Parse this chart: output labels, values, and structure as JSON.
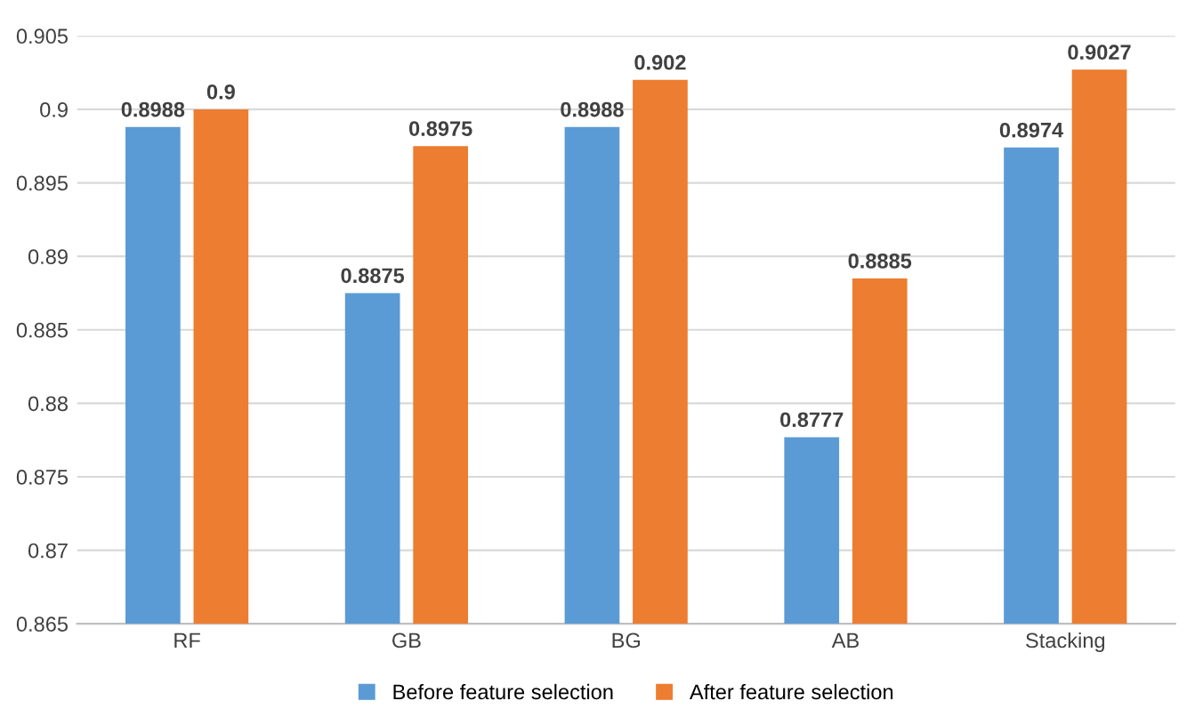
{
  "chart_data": {
    "type": "bar",
    "categories": [
      "RF",
      "GB",
      "BG",
      "AB",
      "Stacking"
    ],
    "series": [
      {
        "name": "Before feature selection",
        "color": "#5b9bd5",
        "values": [
          0.8988,
          0.8875,
          0.8988,
          0.8777,
          0.8974
        ]
      },
      {
        "name": "After feature selection",
        "color": "#ed7d31",
        "values": [
          0.9,
          0.8975,
          0.902,
          0.8885,
          0.9027
        ]
      }
    ],
    "ylim": [
      0.865,
      0.905
    ],
    "yticks": [
      0.865,
      0.87,
      0.875,
      0.88,
      0.885,
      0.89,
      0.895,
      0.9,
      0.905
    ],
    "grid": "y",
    "legend": "bottom",
    "data_labels": true
  }
}
